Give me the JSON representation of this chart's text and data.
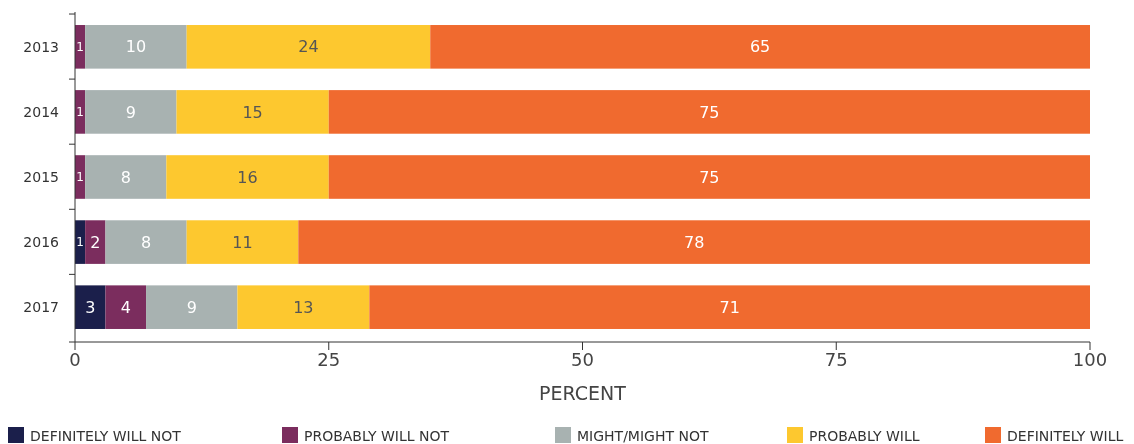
{
  "chart_data": {
    "type": "bar",
    "orientation": "horizontal",
    "stacked": true,
    "categories": [
      "2013",
      "2014",
      "2015",
      "2016",
      "2017"
    ],
    "xlabel": "PERCENT",
    "xlim": [
      0,
      100
    ],
    "xticks": [
      0,
      25,
      50,
      75,
      100
    ],
    "legend": "bottom",
    "grid": false,
    "series": [
      {
        "name": "DEFINITELY WILL NOT",
        "color": "#1b1f4b",
        "values": [
          0,
          0,
          0,
          1,
          3
        ],
        "value_labels": [
          null,
          null,
          null,
          "1",
          "3"
        ]
      },
      {
        "name": "PROBABLY WILL NOT",
        "color": "#7b2d5e",
        "values": [
          1,
          1,
          1,
          2,
          4
        ],
        "value_labels": [
          "1",
          "1",
          "1",
          "2",
          "4"
        ]
      },
      {
        "name": "MIGHT/MIGHT NOT",
        "color": "#a8b2b1",
        "values": [
          10,
          9,
          8,
          8,
          9
        ],
        "value_labels": [
          "10",
          "9",
          "8",
          "8",
          "9"
        ]
      },
      {
        "name": "PROBABLY WILL",
        "color": "#fdc82f",
        "values": [
          24,
          15,
          16,
          11,
          13
        ],
        "value_labels": [
          "24",
          "15",
          "16",
          "11",
          "13"
        ]
      },
      {
        "name": "DEFINITELY WILL",
        "color": "#f06a2f",
        "values": [
          65,
          75,
          75,
          78,
          71
        ],
        "value_labels": [
          "65",
          "75",
          "75",
          "78",
          "71"
        ]
      }
    ]
  }
}
